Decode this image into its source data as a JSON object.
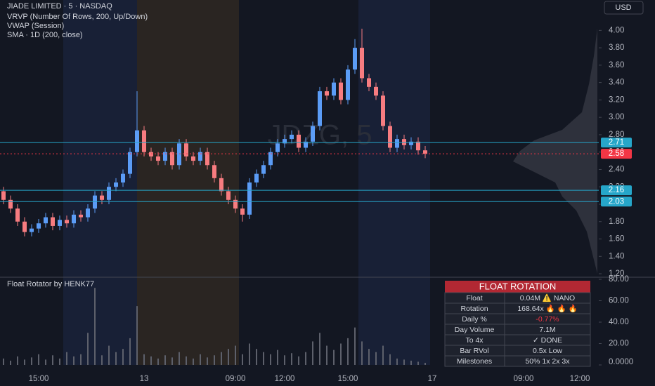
{
  "header": {
    "symbol": "JIADE LIMITED · 5 · NASDAQ",
    "indicators": [
      "VRVP (Number Of Rows, 200, Up/Down)",
      "VWAP (Session)",
      "SMA · 1D (200, close)"
    ],
    "watermark": "JDZG, 5",
    "currency": "USD"
  },
  "chart_data": [
    {
      "type": "candlestick",
      "up_color": "#5b9cf6",
      "down_color": "#f77c80",
      "ylim": [
        1.16,
        4.35
      ],
      "yticks": [
        {
          "value": 4.0,
          "label": "4.00"
        },
        {
          "value": 3.8,
          "label": "3.80"
        },
        {
          "value": 3.6,
          "label": "3.60"
        },
        {
          "value": 3.4,
          "label": "3.40"
        },
        {
          "value": 3.2,
          "label": "3.20"
        },
        {
          "value": 3.0,
          "label": "3.00"
        },
        {
          "value": 2.8,
          "label": "2.80"
        },
        {
          "value": 2.6,
          "label": "2.60"
        },
        {
          "value": 2.4,
          "label": "2.40"
        },
        {
          "value": 2.2,
          "label": "2.20"
        },
        {
          "value": 2.0,
          "label": "2.00"
        },
        {
          "value": 1.8,
          "label": "1.80"
        },
        {
          "value": 1.6,
          "label": "1.60"
        },
        {
          "value": 1.4,
          "label": "1.40"
        },
        {
          "value": 1.2,
          "label": "1.20"
        }
      ],
      "levels": [
        {
          "value": 2.71,
          "color": "#26a6c9"
        },
        {
          "value": 2.58,
          "color": "#f23645"
        },
        {
          "value": 2.16,
          "color": "#26a6c9"
        },
        {
          "value": 2.03,
          "color": "#26a6c9"
        }
      ],
      "categories": [
        null,
        null,
        null,
        null,
        null,
        "15:00",
        null,
        null,
        null,
        null,
        null,
        null,
        null,
        null,
        null,
        null,
        null,
        null,
        null,
        null,
        "13",
        null,
        null,
        null,
        null,
        null,
        null,
        null,
        null,
        null,
        null,
        null,
        null,
        "09:00",
        null,
        null,
        null,
        null,
        null,
        null,
        "12:00",
        null,
        null,
        null,
        null,
        null,
        null,
        null,
        null,
        "15:00",
        null,
        null,
        null,
        null,
        null,
        null,
        null,
        null,
        null,
        null,
        null,
        "17",
        null,
        null,
        null,
        null,
        null,
        null,
        null,
        null,
        null,
        null,
        null,
        null,
        "09:00",
        null,
        null,
        null,
        null,
        null,
        null,
        null,
        "12:00",
        null,
        null
      ],
      "open": [
        2.15,
        2.05,
        1.95,
        1.8,
        1.68,
        1.72,
        1.78,
        1.85,
        1.75,
        1.82,
        1.78,
        1.88,
        1.85,
        1.95,
        2.1,
        2.05,
        2.2,
        2.25,
        2.35,
        2.6,
        2.85,
        2.6,
        2.55,
        2.5,
        2.6,
        2.45,
        2.7,
        2.55,
        2.5,
        2.6,
        2.45,
        2.3,
        2.15,
        2.05,
        1.95,
        1.88,
        2.25,
        2.35,
        2.45,
        2.6,
        2.7,
        2.75,
        2.8,
        2.65,
        2.72,
        2.9,
        3.3,
        3.25,
        3.4,
        3.2,
        3.55,
        3.8,
        3.45,
        3.35,
        3.25,
        2.9,
        2.65,
        2.75,
        2.68,
        2.72,
        2.62,
        null,
        null,
        null,
        null,
        null,
        null,
        null,
        null,
        null,
        null,
        null,
        null,
        null,
        null,
        null,
        null,
        null,
        null,
        null,
        null,
        null,
        null,
        null,
        null
      ],
      "high": [
        2.2,
        2.1,
        2.0,
        1.85,
        1.77,
        1.83,
        1.9,
        1.9,
        1.87,
        1.87,
        1.93,
        1.93,
        2.0,
        2.15,
        2.15,
        2.25,
        2.3,
        2.4,
        2.65,
        3.3,
        2.9,
        2.65,
        2.6,
        2.65,
        2.65,
        2.75,
        2.75,
        2.6,
        2.65,
        2.65,
        2.5,
        2.35,
        2.2,
        2.1,
        2.0,
        2.3,
        2.4,
        2.5,
        2.65,
        2.75,
        2.8,
        2.85,
        2.85,
        2.77,
        2.95,
        3.35,
        3.35,
        3.45,
        3.45,
        3.6,
        3.9,
        4.02,
        3.5,
        3.4,
        3.3,
        2.95,
        2.8,
        2.8,
        2.77,
        2.77,
        2.67,
        null,
        null,
        null,
        null,
        null,
        null,
        null,
        null,
        null,
        null,
        null,
        null,
        null,
        null,
        null,
        null,
        null,
        null,
        null,
        null,
        null,
        null,
        null,
        null
      ],
      "low": [
        2.0,
        1.9,
        1.75,
        1.63,
        1.63,
        1.67,
        1.73,
        1.7,
        1.7,
        1.73,
        1.73,
        1.8,
        1.8,
        1.9,
        2.0,
        2.0,
        2.15,
        2.2,
        2.3,
        2.55,
        2.55,
        2.5,
        2.45,
        2.45,
        2.4,
        2.4,
        2.5,
        2.45,
        2.45,
        2.4,
        2.25,
        2.1,
        2.0,
        1.9,
        1.8,
        1.83,
        2.2,
        2.3,
        2.4,
        2.55,
        2.65,
        2.7,
        2.6,
        2.6,
        2.67,
        2.85,
        3.2,
        3.2,
        3.15,
        3.15,
        3.5,
        3.4,
        3.3,
        3.2,
        2.85,
        2.6,
        2.6,
        2.63,
        2.63,
        2.57,
        2.53,
        null,
        null,
        null,
        null,
        null,
        null,
        null,
        null,
        null,
        null,
        null,
        null,
        null,
        null,
        null,
        null,
        null,
        null,
        null,
        null,
        null,
        null,
        null,
        null
      ],
      "close": [
        2.05,
        1.95,
        1.8,
        1.68,
        1.72,
        1.78,
        1.85,
        1.75,
        1.82,
        1.78,
        1.88,
        1.85,
        1.95,
        2.1,
        2.05,
        2.2,
        2.25,
        2.35,
        2.6,
        2.85,
        2.6,
        2.55,
        2.5,
        2.6,
        2.45,
        2.7,
        2.55,
        2.5,
        2.6,
        2.45,
        2.3,
        2.15,
        2.05,
        1.95,
        1.88,
        2.25,
        2.35,
        2.45,
        2.6,
        2.7,
        2.75,
        2.8,
        2.65,
        2.72,
        2.9,
        3.3,
        3.25,
        3.4,
        3.2,
        3.55,
        3.8,
        3.45,
        3.35,
        3.25,
        2.9,
        2.65,
        2.75,
        2.68,
        2.72,
        2.62,
        2.58,
        null,
        null,
        null,
        null,
        null,
        null,
        null,
        null,
        null,
        null,
        null,
        null,
        null,
        null,
        null,
        null,
        null,
        null,
        null,
        null,
        null,
        null,
        null,
        null
      ]
    },
    {
      "type": "bar",
      "title": "Float Rotator by HENK77",
      "color": "#5d606b",
      "ylim": [
        0,
        80
      ],
      "yticks": [
        {
          "value": 80,
          "label": "80.00"
        },
        {
          "value": 60,
          "label": "60.00"
        },
        {
          "value": 40,
          "label": "40.00"
        },
        {
          "value": 20,
          "label": "20.00"
        },
        {
          "value": 0,
          "label": "0.0000"
        }
      ],
      "values": [
        6,
        4,
        8,
        5,
        7,
        10,
        5,
        9,
        6,
        12,
        8,
        10,
        30,
        72,
        9,
        18,
        12,
        15,
        25,
        55,
        10,
        8,
        6,
        9,
        7,
        12,
        8,
        6,
        10,
        7,
        9,
        12,
        15,
        18,
        10,
        20,
        15,
        12,
        10,
        14,
        9,
        11,
        8,
        12,
        22,
        30,
        18,
        14,
        20,
        25,
        35,
        22,
        15,
        12,
        18,
        10,
        6,
        5,
        4,
        3,
        2,
        null,
        null,
        null,
        null,
        null,
        null,
        null,
        null,
        null,
        null,
        null,
        null,
        null,
        null,
        null,
        null,
        null,
        null,
        null,
        null,
        null,
        null,
        null,
        null
      ]
    }
  ],
  "table": {
    "title": "FLOAT ROTATION",
    "rows": [
      [
        "Float",
        "0.04M ⚠️ NANO"
      ],
      [
        "Rotation",
        "168.64x 🔥 🔥 🔥"
      ],
      [
        "Daily %",
        "-0.77%"
      ],
      [
        "Day Volume",
        "7.1M"
      ],
      [
        "To 4x",
        "✓ DONE"
      ],
      [
        "Bar RVol",
        "0.5x Low"
      ],
      [
        "Milestones",
        "50% 1x 2x 3x"
      ]
    ]
  }
}
